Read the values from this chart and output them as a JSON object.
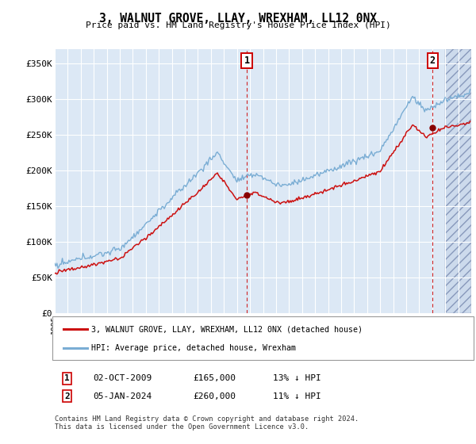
{
  "title": "3, WALNUT GROVE, LLAY, WREXHAM, LL12 0NX",
  "subtitle": "Price paid vs. HM Land Registry's House Price Index (HPI)",
  "background_color": "#ffffff",
  "plot_bg_color": "#dce8f5",
  "hatch_bg_color": "#ccdaec",
  "grid_color": "#ffffff",
  "hpi_line_color": "#7aadd4",
  "price_line_color": "#cc1111",
  "marker_color": "#880000",
  "sale1_date_x": 2009.75,
  "sale1_price": 165000,
  "sale2_date_x": 2024.04,
  "sale2_price": 260000,
  "ylabel_ticks": [
    0,
    50000,
    100000,
    150000,
    200000,
    250000,
    300000,
    350000
  ],
  "ylabel_labels": [
    "£0",
    "£50K",
    "£100K",
    "£150K",
    "£200K",
    "£250K",
    "£300K",
    "£350K"
  ],
  "xmin": 1995,
  "xmax": 2027,
  "ymin": 0,
  "ymax": 370000,
  "legend_line1": "3, WALNUT GROVE, LLAY, WREXHAM, LL12 0NX (detached house)",
  "legend_line2": "HPI: Average price, detached house, Wrexham",
  "footer": "Contains HM Land Registry data © Crown copyright and database right 2024.\nThis data is licensed under the Open Government Licence v3.0.",
  "hatch_start": 2025.0
}
